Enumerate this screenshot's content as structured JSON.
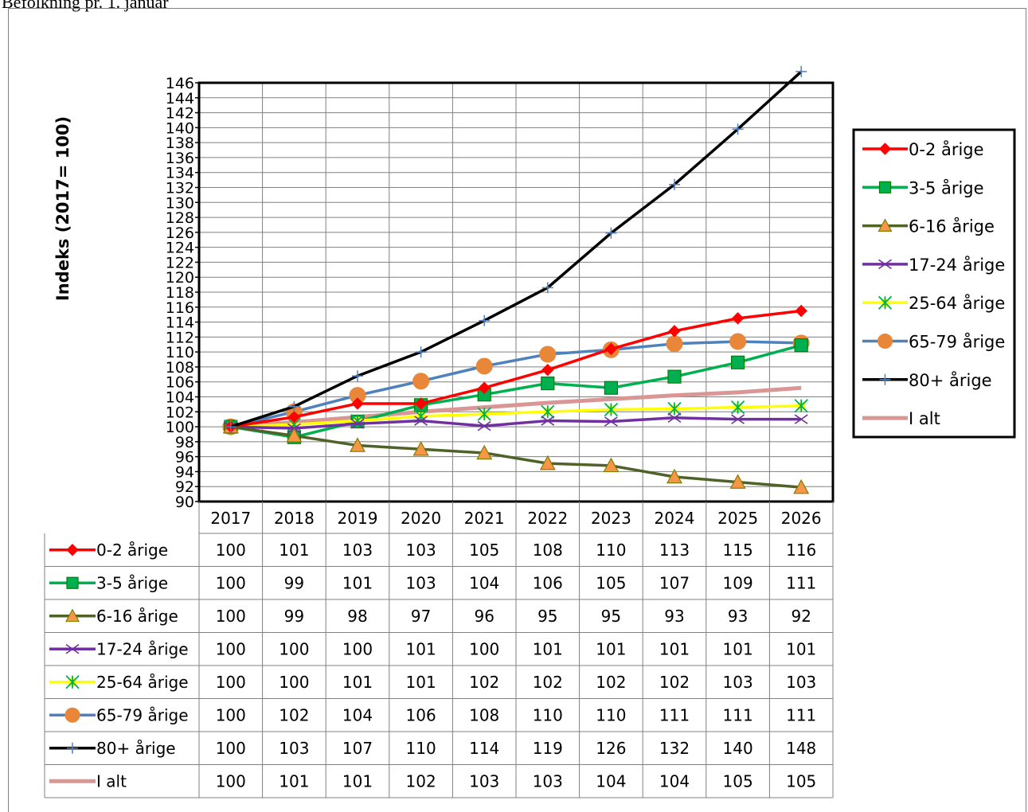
{
  "page": {
    "heading": "Befolkning pr. 1. januar"
  },
  "colors": {
    "0-2 årige": "#ff0000",
    "3-5 årige": "#00b050",
    "6-16 årige": "#4f6228",
    "17-24 årige": "#7030a0",
    "25-64 årige": "#ffff00",
    "65-79 årige": "#4f81bd",
    "80+ årige": "#000000",
    "I alt": "#d99694"
  },
  "chart_data": {
    "type": "line",
    "title": "",
    "xlabel": "",
    "ylabel": "Indeks (2017= 100)",
    "ylim": [
      90,
      146
    ],
    "yticks": [
      90,
      92,
      94,
      96,
      98,
      100,
      102,
      104,
      106,
      108,
      110,
      112,
      114,
      116,
      118,
      120,
      122,
      124,
      126,
      128,
      130,
      132,
      134,
      136,
      138,
      140,
      142,
      144,
      146
    ],
    "grid": true,
    "legend_position": "right",
    "data_table": true,
    "x": [
      "2017",
      "2018",
      "2019",
      "2020",
      "2021",
      "2022",
      "2023",
      "2024",
      "2025",
      "2026"
    ],
    "series": [
      {
        "name": "0-2 årige",
        "marker": "diamond",
        "color": "#ff0000",
        "fill": "#ff0000",
        "stroke": "#ff0000",
        "values": [
          100,
          101.3,
          103.1,
          103.1,
          105.2,
          107.6,
          110.4,
          112.8,
          114.5,
          115.5
        ],
        "table_values": [
          "100",
          "101",
          "103",
          "103",
          "105",
          "108",
          "110",
          "113",
          "115",
          "116"
        ]
      },
      {
        "name": "3-5 årige",
        "marker": "square",
        "color": "#00b050",
        "fill": "#00b050",
        "stroke": "#008000",
        "values": [
          100,
          98.6,
          100.7,
          102.9,
          104.3,
          105.8,
          105.2,
          106.7,
          108.6,
          110.9
        ],
        "table_values": [
          "100",
          "99",
          "101",
          "103",
          "104",
          "106",
          "105",
          "107",
          "109",
          "111"
        ]
      },
      {
        "name": "6-16 årige",
        "marker": "triangle",
        "color": "#4f6228",
        "fill": "#f79646",
        "stroke": "#7f7f00",
        "values": [
          100,
          98.8,
          97.5,
          97.0,
          96.5,
          95.1,
          94.8,
          93.3,
          92.6,
          91.9
        ],
        "table_values": [
          "100",
          "99",
          "98",
          "97",
          "96",
          "95",
          "95",
          "93",
          "93",
          "92"
        ]
      },
      {
        "name": "17-24 årige",
        "marker": "x",
        "color": "#7030a0",
        "fill": "#7030a0",
        "stroke": "#7030a0",
        "values": [
          100,
          99.8,
          100.4,
          100.8,
          100.1,
          100.8,
          100.7,
          101.2,
          101.0,
          101.0
        ],
        "table_values": [
          "100",
          "100",
          "100",
          "101",
          "100",
          "101",
          "101",
          "101",
          "101",
          "101"
        ]
      },
      {
        "name": "25-64 årige",
        "marker": "asterisk",
        "color": "#ffff00",
        "fill": "#ffff00",
        "stroke": "#00b050",
        "values": [
          100,
          100.3,
          100.8,
          101.4,
          101.7,
          102.0,
          102.3,
          102.4,
          102.6,
          102.8
        ],
        "table_values": [
          "100",
          "100",
          "101",
          "101",
          "102",
          "102",
          "102",
          "102",
          "103",
          "103"
        ]
      },
      {
        "name": "65-79 årige",
        "marker": "circle",
        "color": "#4f81bd",
        "fill": "#e8863a",
        "stroke": "#e8863a",
        "values": [
          100,
          102.0,
          104.2,
          106.1,
          108.1,
          109.7,
          110.3,
          111.1,
          111.4,
          111.2
        ],
        "table_values": [
          "100",
          "102",
          "104",
          "106",
          "108",
          "110",
          "110",
          "111",
          "111",
          "111"
        ]
      },
      {
        "name": "80+ årige",
        "marker": "plus",
        "color": "#000000",
        "fill": "#4f81bd",
        "stroke": "#4f81bd",
        "values": [
          100,
          102.7,
          106.8,
          110.0,
          114.2,
          118.6,
          125.9,
          132.4,
          139.8,
          147.5
        ],
        "table_values": [
          "100",
          "103",
          "107",
          "110",
          "114",
          "119",
          "126",
          "132",
          "140",
          "148"
        ]
      },
      {
        "name": "I alt",
        "marker": "none",
        "color": "#d99694",
        "fill": "#d99694",
        "stroke": "#d99694",
        "values": [
          100,
          100.6,
          101.3,
          102.0,
          102.6,
          103.2,
          103.7,
          104.2,
          104.6,
          105.2
        ],
        "table_values": [
          "100",
          "101",
          "101",
          "102",
          "103",
          "103",
          "104",
          "104",
          "105",
          "105"
        ]
      }
    ]
  }
}
